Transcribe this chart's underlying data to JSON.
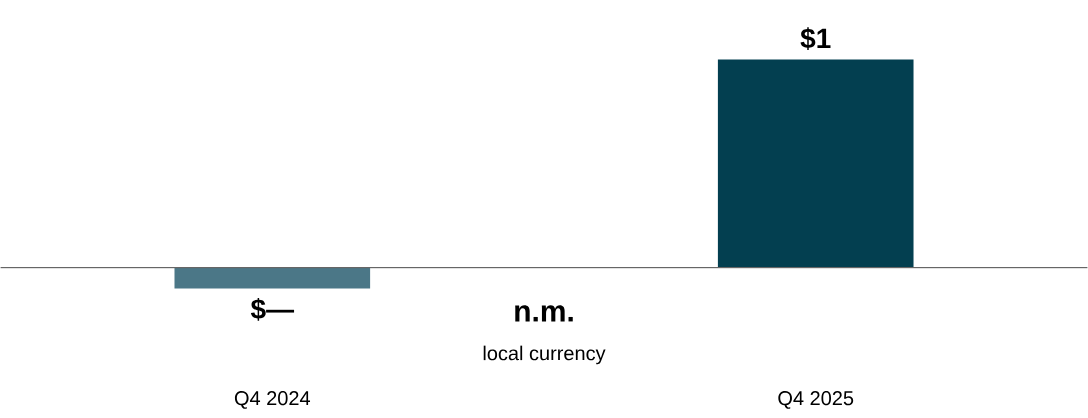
{
  "chart_data": {
    "type": "bar",
    "categories": [
      "Q4 2024",
      "Q4 2025"
    ],
    "values": [
      -0.1,
      1
    ],
    "colors": [
      "#4b7787",
      "#033f50"
    ],
    "value_labels": [
      "$—",
      "$1"
    ],
    "annotations": [
      "n.m.",
      "local currency"
    ]
  }
}
